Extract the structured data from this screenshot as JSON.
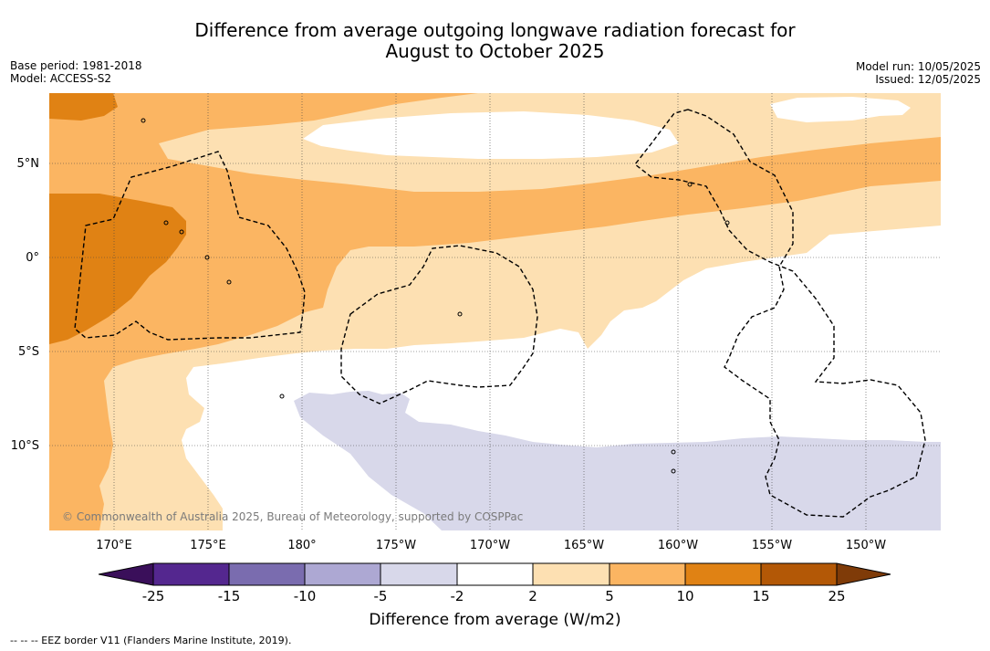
{
  "title_line1": "Difference from average outgoing longwave radiation forecast for",
  "title_line2": "August to October 2025",
  "meta_left": {
    "base_period": "Base period: 1981-2018",
    "model": "Model: ACCESS-S2"
  },
  "meta_right": {
    "model_run": "Model run: 10/05/2025",
    "issued": "Issued: 12/05/2025"
  },
  "lat_labels": [
    "5°N",
    "0°",
    "5°S",
    "10°S"
  ],
  "lon_labels": [
    "170°E",
    "175°E",
    "180°",
    "175°W",
    "170°W",
    "165°W",
    "160°W",
    "155°W",
    "150°W"
  ],
  "credit": "© Commonwealth of Australia 2025, Bureau of Meteorology, supported by COSPPac",
  "colorbar": {
    "title": "Difference from average (W/m2)",
    "ticks": [
      "-25",
      "-15",
      "-10",
      "-5",
      "-2",
      "2",
      "5",
      "10",
      "15",
      "25"
    ],
    "colors": {
      "below_min": "#3a0f5a",
      "n25_n15": "#54278f",
      "n15_n10": "#7a6caf",
      "n10_n5": "#ada8d3",
      "n5_n2": "#d8d8ea",
      "n2_2": "#ffffff",
      "p2_p5": "#fde0b2",
      "p5_p10": "#fbb562",
      "p10_p15": "#e08214",
      "p15_p25": "#b35806",
      "above_max": "#7f3b08"
    }
  },
  "eez_note": "-- -- -- EEZ border V11 (Flanders Marine Institute, 2019)."
}
